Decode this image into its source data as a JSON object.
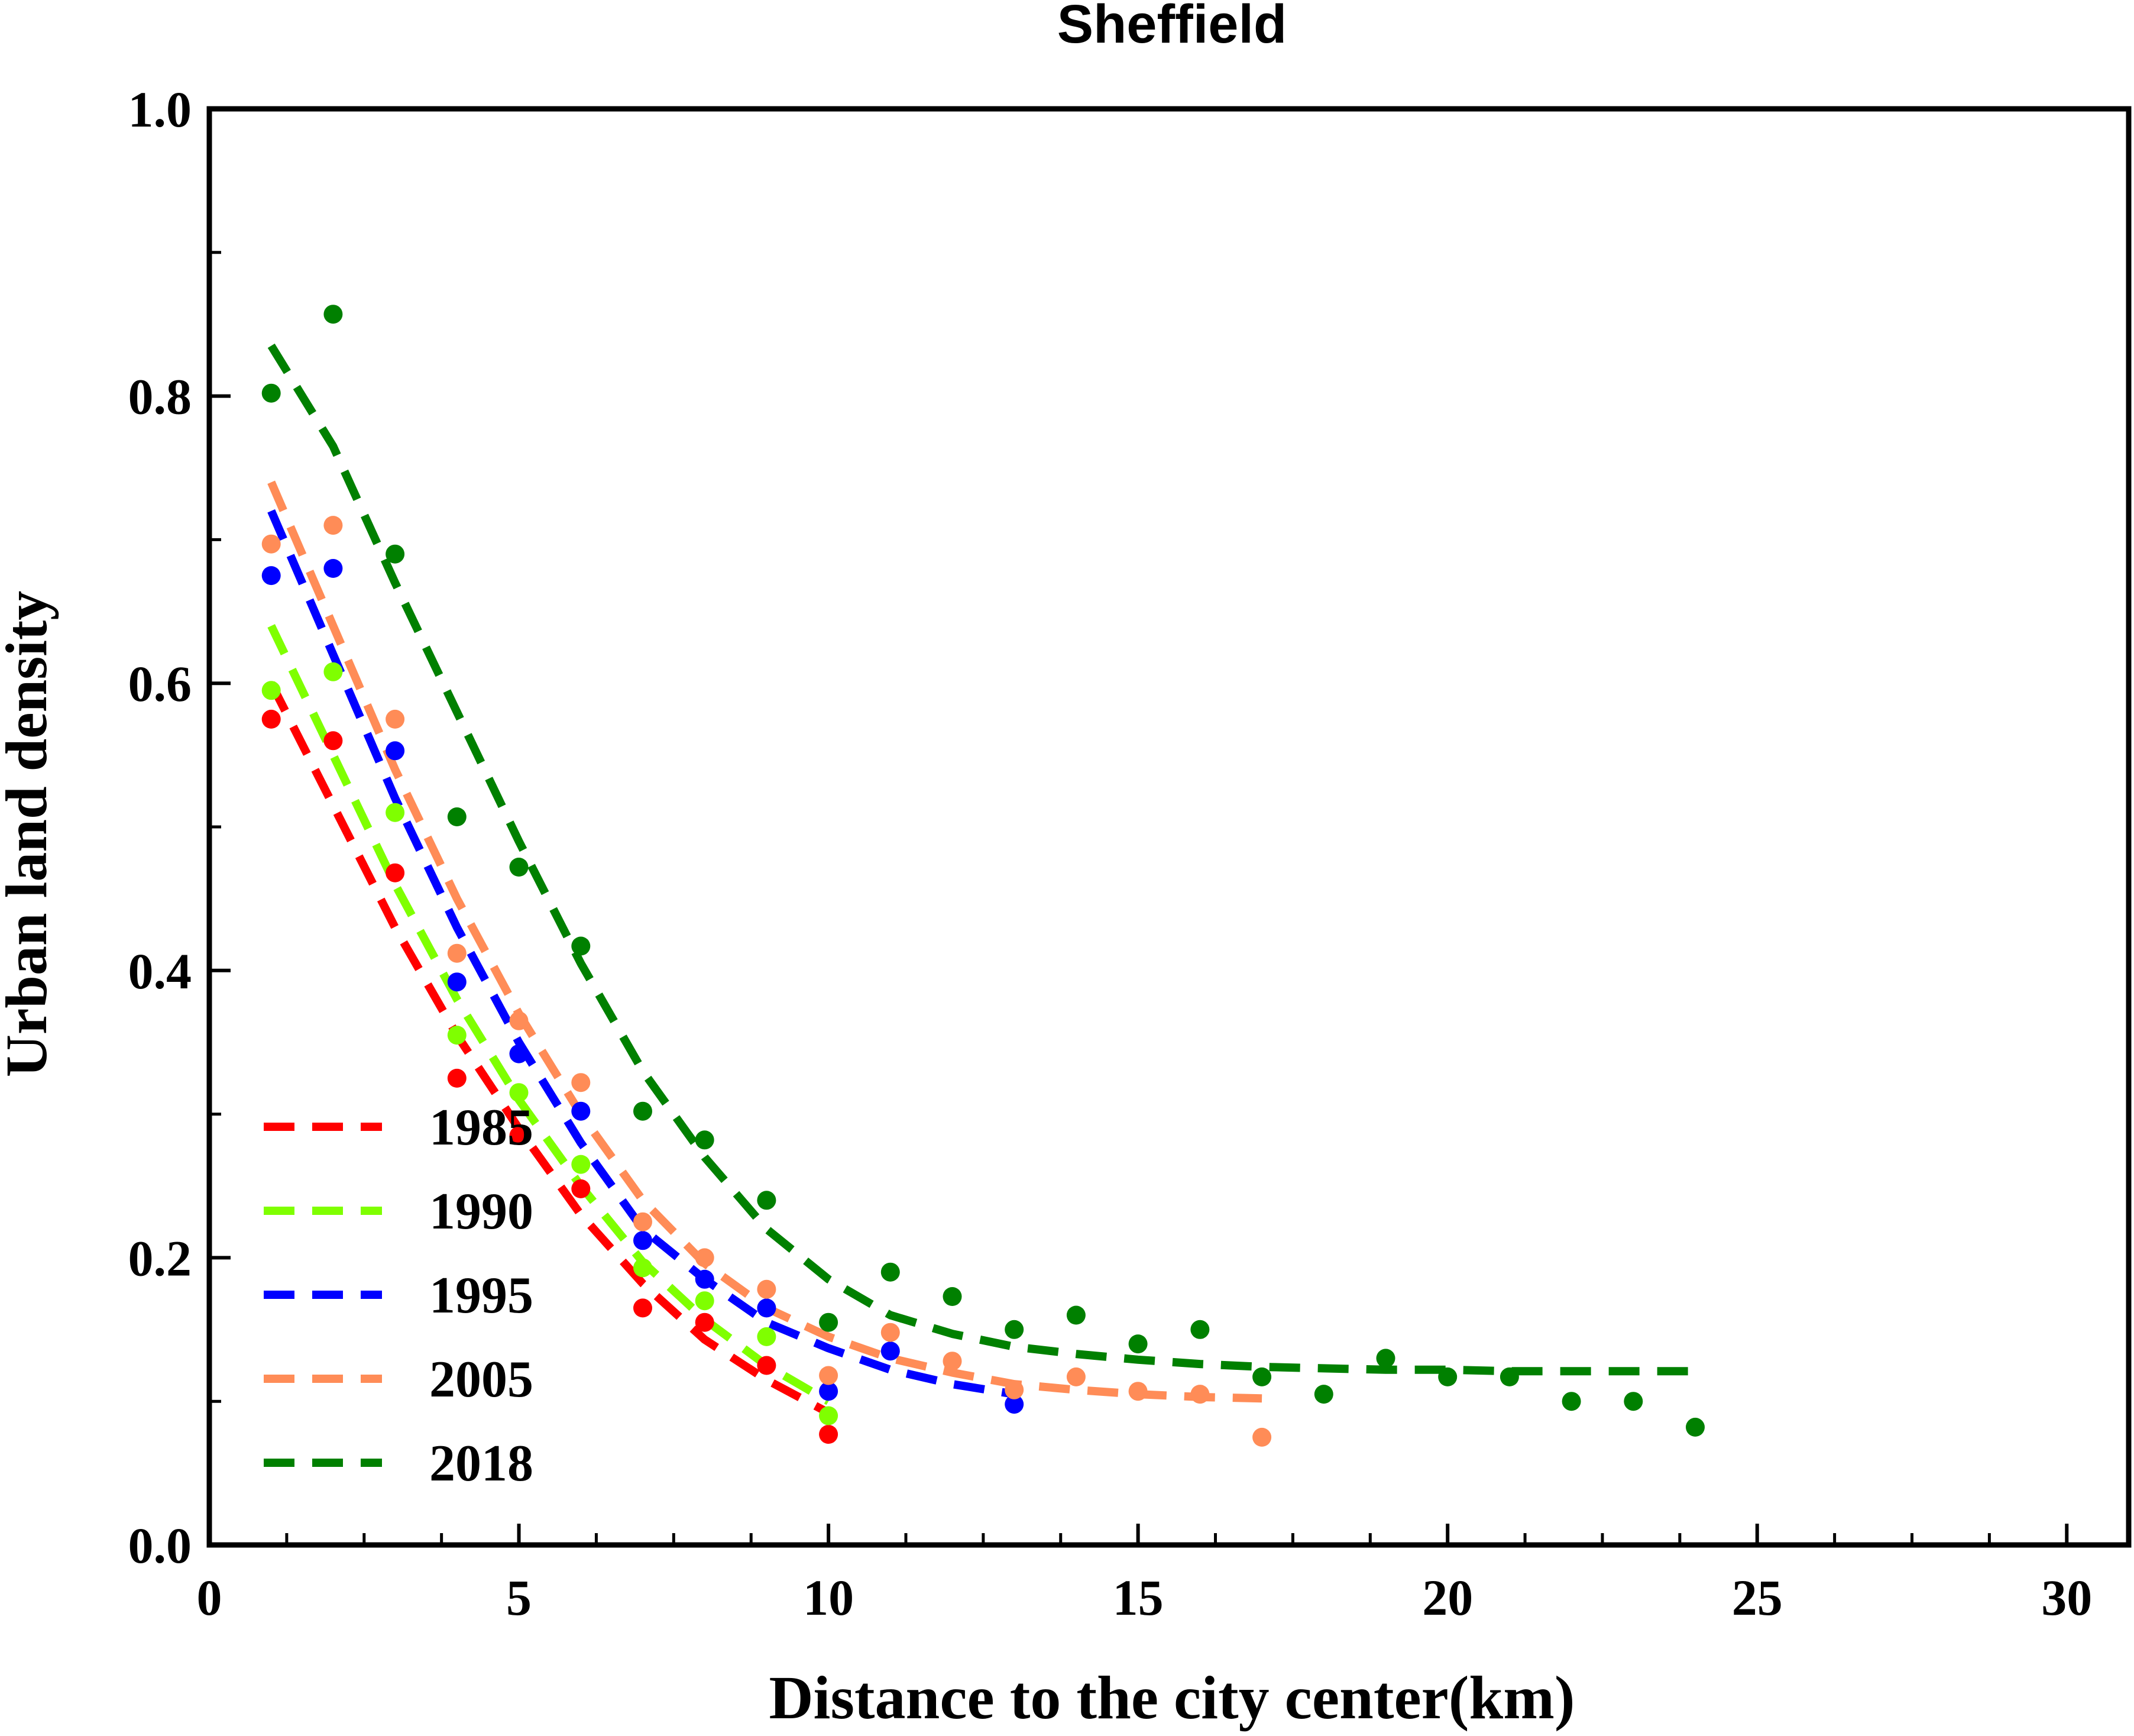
{
  "chart_data": {
    "type": "scatter",
    "title": "Sheffield",
    "xlabel": "Distance to the city center(km)",
    "ylabel": "Urban land density",
    "xlim": [
      0,
      31
    ],
    "ylim": [
      0,
      1.0
    ],
    "xticks": [
      0,
      5,
      10,
      15,
      20,
      25,
      30
    ],
    "xtick_labels": [
      "0",
      "5",
      "10",
      "15",
      "20",
      "25",
      "30"
    ],
    "yticks": [
      0.0,
      0.2,
      0.4,
      0.6,
      0.8,
      1.0
    ],
    "ytick_labels": [
      "0.0",
      "0.2",
      "0.4",
      "0.6",
      "0.8",
      "1.0"
    ],
    "grid": false,
    "legend_position": "bottom-left",
    "series": [
      {
        "name": "1985",
        "color": "#ff0000",
        "points": {
          "x": [
            1,
            2,
            3,
            4,
            5,
            6,
            7,
            8,
            9,
            10
          ],
          "y": [
            0.575,
            0.56,
            0.468,
            0.325,
            0.285,
            0.248,
            0.165,
            0.155,
            0.125,
            0.077
          ]
        },
        "fit": {
          "x": [
            1,
            2,
            3,
            4,
            5,
            6,
            7,
            8,
            9,
            10
          ],
          "y": [
            0.6,
            0.515,
            0.43,
            0.355,
            0.29,
            0.23,
            0.182,
            0.143,
            0.115,
            0.092
          ]
        }
      },
      {
        "name": "1990",
        "color": "#7fff00",
        "points": {
          "x": [
            1,
            2,
            3,
            4,
            5,
            6,
            7,
            8,
            9,
            10
          ],
          "y": [
            0.595,
            0.608,
            0.51,
            0.355,
            0.315,
            0.265,
            0.193,
            0.17,
            0.145,
            0.09
          ]
        },
        "fit": {
          "x": [
            1,
            2,
            3,
            4,
            5,
            6,
            7,
            8,
            9,
            10
          ],
          "y": [
            0.64,
            0.55,
            0.46,
            0.38,
            0.31,
            0.25,
            0.197,
            0.157,
            0.125,
            0.1
          ]
        }
      },
      {
        "name": "1995",
        "color": "#0000ff",
        "points": {
          "x": [
            1,
            2,
            3,
            4,
            5,
            6,
            7,
            8,
            9,
            10,
            11,
            13
          ],
          "y": [
            0.675,
            0.68,
            0.553,
            0.392,
            0.342,
            0.302,
            0.212,
            0.185,
            0.165,
            0.107,
            0.135,
            0.098
          ]
        },
        "fit": {
          "x": [
            1,
            2,
            3,
            4,
            5,
            6,
            7,
            8,
            9,
            10,
            11,
            12,
            13
          ],
          "y": [
            0.72,
            0.62,
            0.52,
            0.43,
            0.35,
            0.28,
            0.22,
            0.185,
            0.155,
            0.137,
            0.122,
            0.112,
            0.105
          ]
        }
      },
      {
        "name": "2005",
        "color": "#ff8c57",
        "points": {
          "x": [
            1,
            2,
            3,
            4,
            5,
            6,
            7,
            8,
            9,
            10,
            11,
            12,
            13,
            14,
            15,
            16,
            17
          ],
          "y": [
            0.697,
            0.71,
            0.575,
            0.412,
            0.365,
            0.322,
            0.225,
            0.2,
            0.178,
            0.118,
            0.148,
            0.128,
            0.108,
            0.117,
            0.107,
            0.105,
            0.075
          ]
        },
        "fit": {
          "x": [
            1,
            2,
            3,
            4,
            5,
            6,
            7,
            8,
            9,
            10,
            11,
            12,
            13,
            14,
            15,
            16,
            17
          ],
          "y": [
            0.74,
            0.64,
            0.54,
            0.45,
            0.37,
            0.3,
            0.24,
            0.196,
            0.165,
            0.145,
            0.13,
            0.12,
            0.112,
            0.108,
            0.105,
            0.103,
            0.102
          ]
        }
      },
      {
        "name": "2018",
        "color": "#008000",
        "points": {
          "x": [
            1,
            2,
            3,
            4,
            5,
            6,
            7,
            8,
            9,
            10,
            11,
            12,
            13,
            14,
            15,
            16,
            17,
            18,
            19,
            20,
            21,
            22,
            23,
            24
          ],
          "y": [
            0.802,
            0.857,
            0.69,
            0.507,
            0.472,
            0.417,
            0.302,
            0.282,
            0.24,
            0.155,
            0.19,
            0.173,
            0.15,
            0.16,
            0.14,
            0.15,
            0.117,
            0.105,
            0.13,
            0.117,
            0.117,
            0.1,
            0.1,
            0.082
          ]
        },
        "fit": {
          "x": [
            1,
            2,
            3,
            4,
            5,
            6,
            7,
            8,
            9,
            10,
            11,
            12,
            13,
            14,
            15,
            16,
            17,
            18,
            19,
            20,
            21,
            22,
            23,
            24
          ],
          "y": [
            0.835,
            0.765,
            0.67,
            0.58,
            0.49,
            0.405,
            0.33,
            0.27,
            0.22,
            0.185,
            0.16,
            0.147,
            0.138,
            0.133,
            0.129,
            0.126,
            0.124,
            0.123,
            0.122,
            0.122,
            0.121,
            0.121,
            0.121,
            0.121
          ]
        }
      }
    ]
  }
}
